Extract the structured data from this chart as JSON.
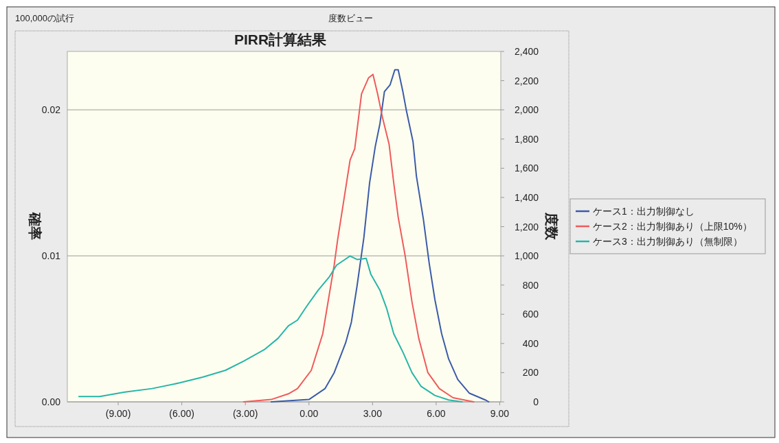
{
  "chart_data": {
    "type": "line",
    "title": "PIRR計算結果",
    "ylabel": "確率",
    "y2label": "度数",
    "annotations": [
      "100,000の試行",
      "度数ビュー"
    ],
    "xlim": [
      -11.4,
      9.05
    ],
    "xticks": [
      {
        "value": -9,
        "label": "(9.00)"
      },
      {
        "value": -6,
        "label": "(6.00)"
      },
      {
        "value": -3,
        "label": "(3.00)"
      },
      {
        "value": 0,
        "label": "0.00"
      },
      {
        "value": 3,
        "label": "3.00"
      },
      {
        "value": 6,
        "label": "6.00"
      },
      {
        "value": 9,
        "label": "9.00"
      }
    ],
    "ylim": [
      0,
      0.024
    ],
    "yticks": [
      {
        "value": 0,
        "label": "0.00"
      },
      {
        "value": 0.01,
        "label": "0.01"
      },
      {
        "value": 0.02,
        "label": "0.02"
      }
    ],
    "y2lim": [
      0,
      2400
    ],
    "y2ticks": [
      {
        "value": 0,
        "label": "0"
      },
      {
        "value": 200,
        "label": "200"
      },
      {
        "value": 400,
        "label": "400"
      },
      {
        "value": 600,
        "label": "600"
      },
      {
        "value": 800,
        "label": "800"
      },
      {
        "value": 1000,
        "label": "1,000"
      },
      {
        "value": 1200,
        "label": "1,200"
      },
      {
        "value": 1400,
        "label": "1,400"
      },
      {
        "value": 1600,
        "label": "1,600"
      },
      {
        "value": 1800,
        "label": "1,800"
      },
      {
        "value": 2000,
        "label": "2,000"
      },
      {
        "value": 2200,
        "label": "2,200"
      },
      {
        "value": 2400,
        "label": "2,400"
      }
    ],
    "grid": "y",
    "legend": "right",
    "line_style": "solid",
    "series": [
      {
        "name": "ケース1：出力制御なし",
        "color": "#3a5ba8",
        "axis": "y2",
        "x": [
          -1.78,
          0,
          0.76,
          1.19,
          1.73,
          2.0,
          2.27,
          2.59,
          2.86,
          3.13,
          3.35,
          3.56,
          3.83,
          4.05,
          4.21,
          4.43,
          4.59,
          4.91,
          5.07,
          5.4,
          5.67,
          5.94,
          6.26,
          6.59,
          7.02,
          7.56,
          8.32,
          8.48
        ],
        "values": [
          0,
          16,
          91,
          200,
          404,
          545,
          795,
          1124,
          1499,
          1750,
          1906,
          2125,
          2172,
          2274,
          2274,
          2125,
          2000,
          1781,
          1546,
          1249,
          952,
          701,
          466,
          294,
          153,
          60,
          13,
          0
        ]
      },
      {
        "name": "ケース2：出力制御あり（上限10%）",
        "color": "#ef5a5a",
        "axis": "y2",
        "x": [
          -3.08,
          -1.78,
          -0.97,
          -0.54,
          0.11,
          0.65,
          1.19,
          1.35,
          1.62,
          1.94,
          2.16,
          2.48,
          2.81,
          3.02,
          3.24,
          3.46,
          3.78,
          4.0,
          4.21,
          4.54,
          4.86,
          5.18,
          5.61,
          6.15,
          6.8,
          7.77
        ],
        "values": [
          0,
          16,
          55,
          91,
          216,
          466,
          936,
          1108,
          1358,
          1656,
          1734,
          2109,
          2219,
          2243,
          2109,
          1953,
          1765,
          1499,
          1264,
          999,
          685,
          435,
          200,
          91,
          28,
          0
        ]
      },
      {
        "name": "ケース3：出力制御あり（無制限）",
        "color": "#26b5a8",
        "axis": "y2",
        "x": [
          -10.85,
          -9.88,
          -8.69,
          -7.4,
          -6.1,
          -5.02,
          -3.94,
          -3.08,
          -2.11,
          -1.46,
          -0.97,
          -0.54,
          -0.11,
          0.43,
          0.97,
          1.3,
          1.94,
          2.27,
          2.7,
          2.92,
          3.35,
          3.67,
          4.0,
          4.43,
          4.86,
          5.29,
          5.94,
          6.59,
          7.23
        ],
        "values": [
          36,
          36,
          67,
          91,
          130,
          169,
          216,
          279,
          357,
          435,
          521,
          560,
          654,
          764,
          858,
          936,
          999,
          975,
          983,
          873,
          764,
          638,
          466,
          341,
          200,
          106,
          44,
          13,
          0
        ]
      }
    ]
  }
}
